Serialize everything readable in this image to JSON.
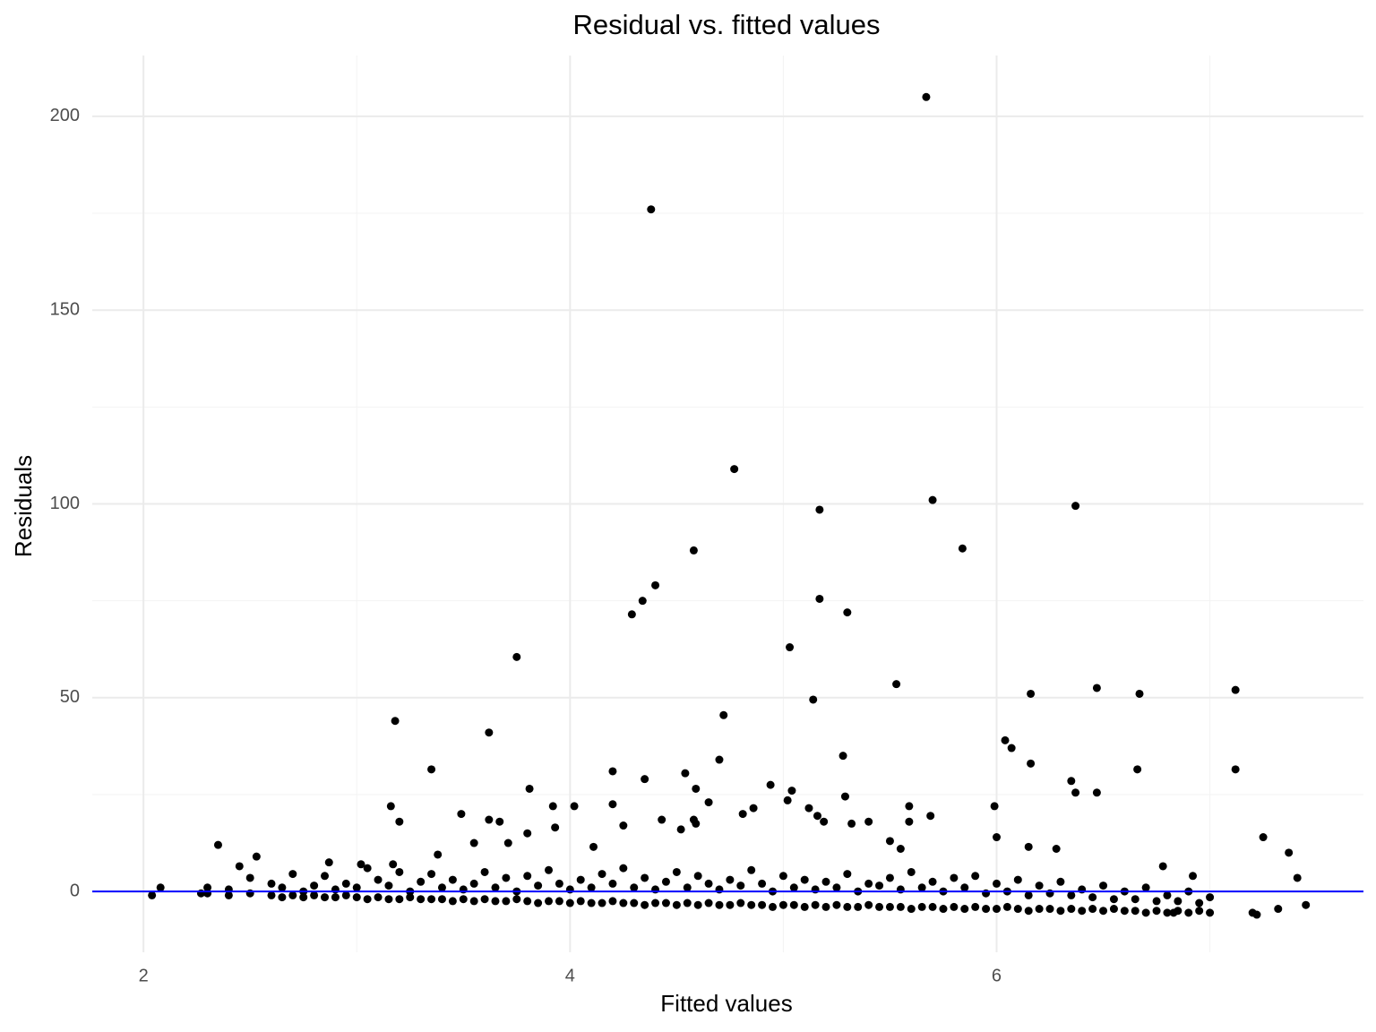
{
  "chart_data": {
    "type": "scatter",
    "title": "Residual vs. fitted values",
    "x_label": "Fitted values",
    "y_label": "Residuals",
    "xlim": [
      1.76,
      7.72
    ],
    "ylim": [
      -15.7,
      215.7
    ],
    "xticks": [
      2,
      4,
      6
    ],
    "yticks": [
      0,
      50,
      100,
      150,
      200
    ],
    "xminorticks": [
      3,
      5,
      7
    ],
    "yminorticks": [
      25,
      75,
      125,
      175
    ],
    "grid": true,
    "hline": {
      "value": 0,
      "color": "#0000ff"
    },
    "series": [
      {
        "color": "#000000",
        "x": [
          5.67,
          4.38,
          4.77,
          5.7,
          5.17,
          6.37,
          5.84,
          4.58,
          4.4,
          4.34,
          4.29,
          5.17,
          5.3,
          5.03,
          3.75,
          5.53,
          6.16,
          6.47,
          6.67,
          7.12,
          5.14,
          3.18,
          4.72,
          3.62,
          6.04,
          6.07,
          4.7,
          5.28,
          6.16,
          3.35,
          4.2,
          4.54,
          4.35,
          6.66,
          7.12,
          6.35,
          4.94,
          5.04,
          3.81,
          4.59,
          6.37,
          6.47,
          5.29,
          4.65,
          5.02,
          4.2,
          3.16,
          3.92,
          4.02,
          5.59,
          5.99,
          4.86,
          5.12,
          3.49,
          4.81,
          5.69,
          5.16,
          5.19,
          3.2,
          3.62,
          3.67,
          4.43,
          4.58,
          5.32,
          5.4,
          5.59,
          4.25,
          3.93,
          4.59,
          3.8,
          4.52,
          6.0,
          7.25,
          5.5,
          3.71,
          3.55,
          2.35,
          4.11,
          6.15,
          6.28,
          5.55,
          3.38,
          7.37,
          2.53,
          2.87,
          6.78,
          2.45,
          3.02,
          3.17,
          7.41,
          6.92,
          2.08,
          2.04,
          2.27,
          7.45,
          7.32,
          7.22,
          7.2,
          6.83
        ],
        "values": [
          205,
          176,
          109,
          101,
          98.5,
          99.5,
          88.5,
          88,
          79,
          75,
          71.5,
          75.5,
          72,
          63,
          60.5,
          53.5,
          51,
          52.5,
          51,
          52,
          49.5,
          44,
          45.5,
          41,
          39,
          37,
          34,
          35,
          33,
          31.5,
          31,
          30.5,
          29,
          31.5,
          31.5,
          28.5,
          27.5,
          26,
          26.5,
          26.5,
          25.5,
          25.5,
          24.5,
          23,
          23.5,
          22.5,
          22,
          22,
          22,
          22,
          22,
          21.5,
          21.5,
          20,
          20,
          19.5,
          19.5,
          18,
          18,
          18.5,
          18,
          18.5,
          18.5,
          17.5,
          18,
          18,
          17,
          16.5,
          17.5,
          15,
          16,
          14,
          14,
          13,
          12.5,
          12.5,
          12,
          11.5,
          11.5,
          11,
          11,
          9.5,
          10,
          9,
          7.5,
          6.5,
          6.5,
          7,
          7,
          3.5,
          4,
          1,
          -1,
          -0.5,
          -3.5,
          -4.5,
          -6,
          -5.5,
          -5.5
        ]
      },
      {
        "color": "#000000",
        "x": [
          2.3,
          2.4,
          2.5,
          2.6,
          2.65,
          2.7,
          2.75,
          2.8,
          2.85,
          2.9,
          2.95,
          3.0,
          3.05,
          3.1,
          3.15,
          3.2,
          3.25,
          3.3,
          3.35,
          3.4,
          3.45,
          3.5,
          3.55,
          3.6,
          3.65,
          3.7,
          3.75,
          3.8,
          3.85,
          3.9,
          3.95,
          4.0,
          4.05,
          4.1,
          4.15,
          4.2,
          4.25,
          4.3,
          4.35,
          4.4,
          4.45,
          4.5,
          4.55,
          4.6,
          4.65,
          4.7,
          4.75,
          4.8,
          4.85,
          4.9,
          4.95,
          5.0,
          5.05,
          5.1,
          5.15,
          5.2,
          5.25,
          5.3,
          5.35,
          5.4,
          5.45,
          5.5,
          5.55,
          5.6,
          5.65,
          5.7,
          5.75,
          5.8,
          5.85,
          5.9,
          5.95,
          6.0,
          6.05,
          6.1,
          6.15,
          6.2,
          6.25,
          6.3,
          6.35,
          6.4,
          6.45,
          6.5,
          6.55,
          6.6,
          6.65,
          6.7,
          6.75,
          6.8,
          6.85,
          6.9,
          6.95,
          7.0
        ],
        "values": [
          -0.5,
          -1,
          -0.5,
          -1,
          -1.5,
          -1,
          -1.5,
          -1,
          -1.5,
          -1.5,
          -1,
          -1.5,
          -2,
          -1.5,
          -2,
          -2,
          -1.5,
          -2,
          -2,
          -2,
          -2.5,
          -2,
          -2.5,
          -2,
          -2.5,
          -2.5,
          -2,
          -2.5,
          -3,
          -2.5,
          -2.5,
          -3,
          -2.5,
          -3,
          -3,
          -2.5,
          -3,
          -3,
          -3.5,
          -3,
          -3,
          -3.5,
          -3,
          -3.5,
          -3,
          -3.5,
          -3.5,
          -3,
          -3.5,
          -3.5,
          -4,
          -3.5,
          -3.5,
          -4,
          -3.5,
          -4,
          -3.5,
          -4,
          -4,
          -3.5,
          -4,
          -4,
          -4,
          -4.5,
          -4,
          -4,
          -4.5,
          -4,
          -4.5,
          -4,
          -4.5,
          -4.5,
          -4,
          -4.5,
          -5,
          -4.5,
          -4.5,
          -5,
          -4.5,
          -5,
          -4.5,
          -5,
          -4.5,
          -5,
          -5,
          -5.5,
          -5,
          -5.5,
          -5,
          -5.5,
          -5,
          -5.5
        ]
      },
      {
        "color": "#000000",
        "x": [
          2.3,
          2.4,
          2.5,
          2.6,
          2.65,
          2.7,
          2.75,
          2.8,
          2.85,
          2.9,
          2.95,
          3.0,
          3.05,
          3.1,
          3.15,
          3.2,
          3.25,
          3.3,
          3.35,
          3.4,
          3.45,
          3.5,
          3.55,
          3.6,
          3.65,
          3.7,
          3.75,
          3.8,
          3.85,
          3.9,
          3.95,
          4.0,
          4.05,
          4.1,
          4.15,
          4.2,
          4.25,
          4.3,
          4.35,
          4.4,
          4.45,
          4.5,
          4.55,
          4.6,
          4.65,
          4.7,
          4.75,
          4.8,
          4.85,
          4.9,
          4.95,
          5.0,
          5.05,
          5.1,
          5.15,
          5.2,
          5.25,
          5.3,
          5.35,
          5.4,
          5.45,
          5.5,
          5.55,
          5.6,
          5.65,
          5.7,
          5.75,
          5.8,
          5.85,
          5.9,
          5.95,
          6.0,
          6.05,
          6.1,
          6.15,
          6.2,
          6.25,
          6.3,
          6.35,
          6.4,
          6.45,
          6.5,
          6.55,
          6.6,
          6.65,
          6.7,
          6.75,
          6.8,
          6.85,
          6.9,
          6.95,
          7.0
        ],
        "values": [
          1,
          0.5,
          3.5,
          2,
          1,
          4.5,
          0,
          1.5,
          4,
          0.5,
          2,
          1,
          6,
          3,
          1.5,
          5,
          0,
          2.5,
          4.5,
          1,
          3,
          0.5,
          2,
          5,
          1,
          3.5,
          0,
          4,
          1.5,
          5.5,
          2,
          0.5,
          3,
          1,
          4.5,
          2,
          6,
          1,
          3.5,
          0.5,
          2.5,
          5,
          1,
          4,
          2,
          0.5,
          3,
          1.5,
          5.5,
          2,
          0,
          4,
          1,
          3,
          0.5,
          2.5,
          1,
          4.5,
          0,
          2,
          1.5,
          3.5,
          0.5,
          5,
          1,
          2.5,
          0,
          3.5,
          1,
          4,
          -0.5,
          2,
          0,
          3,
          -1,
          1.5,
          -0.5,
          2.5,
          -1,
          0.5,
          -1.5,
          1.5,
          -2,
          0,
          -2,
          1,
          -2.5,
          -1,
          -2.5,
          0,
          -3,
          -1.5
        ]
      }
    ]
  }
}
